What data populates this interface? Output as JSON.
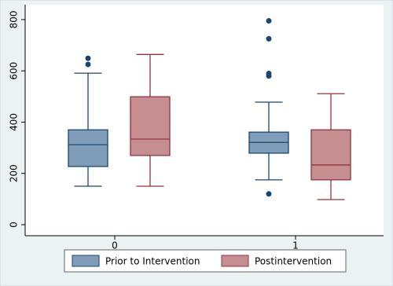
{
  "chart_data": {
    "type": "box",
    "categories": [
      "0",
      "1"
    ],
    "ylim": [
      -43,
      858
    ],
    "yticks": [
      0,
      200,
      400,
      600,
      800
    ],
    "grid": false,
    "legend": "bottom",
    "series": [
      {
        "name": "Prior to Intervention",
        "color": "#7f9db9",
        "edge": "#1a476f",
        "values": [
          {
            "whislo": 150,
            "q1": 227,
            "med": 312,
            "q3": 370,
            "whishi": 591,
            "fliers": [
              625,
              649
            ]
          },
          {
            "whislo": 175,
            "q1": 279,
            "med": 321,
            "q3": 361,
            "whishi": 478,
            "fliers": [
              120,
              580,
              590,
              725,
              795
            ]
          }
        ]
      },
      {
        "name": "Postintervention",
        "color": "#c78e91",
        "edge": "#90353b",
        "values": [
          {
            "whislo": 150,
            "q1": 270,
            "med": 334,
            "q3": 499,
            "whishi": 664,
            "fliers": []
          },
          {
            "whislo": 98,
            "q1": 175,
            "med": 233,
            "q3": 370,
            "whishi": 511,
            "fliers": []
          }
        ]
      }
    ]
  }
}
